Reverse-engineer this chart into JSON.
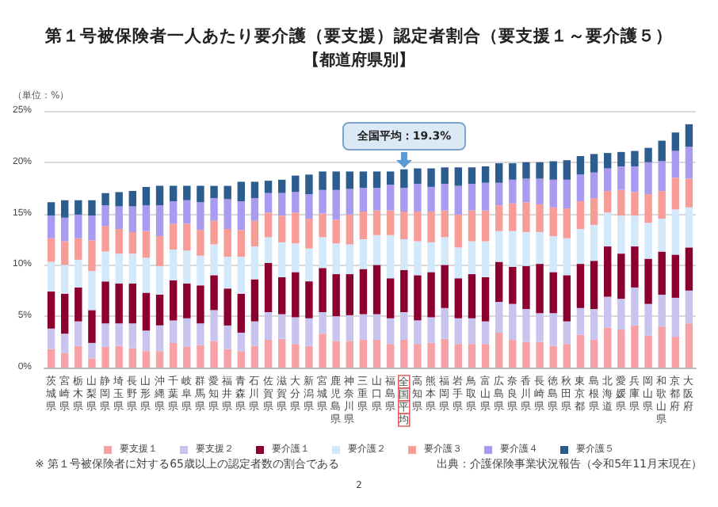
{
  "chart_data": {
    "type": "bar",
    "title": "第１号被保険者一人あたり要介護（要支援）認定者割合（要支援１～要介護５）",
    "subtitle": "【都道府県別】",
    "ylabel": "（単位：%）",
    "categories": [
      "茨城県",
      "宮崎県",
      "栃木県",
      "山梨県",
      "静岡県",
      "埼玉県",
      "長野県",
      "山形県",
      "沖縄県",
      "千葉県",
      "岐阜県",
      "群馬県",
      "愛知県",
      "福井県",
      "青森県",
      "石川県",
      "佐賀県",
      "滋賀県",
      "大分県",
      "新潟県",
      "宮城県",
      "鹿児島県",
      "神奈川県",
      "三重県",
      "山口県",
      "福島県",
      "全国平均",
      "高知県",
      "熊本県",
      "福岡県",
      "岩手県",
      "鳥取県",
      "富山県",
      "広島県",
      "奈良県",
      "香川県",
      "長崎県",
      "徳島県",
      "秋田県",
      "東京都",
      "島根県",
      "北海道",
      "愛媛県",
      "兵庫県",
      "岡山県",
      "和歌山県",
      "京都府",
      "大阪府"
    ],
    "stacked": true,
    "series": [
      {
        "name": "要支援１",
        "color": "#f7a1a6",
        "values": [
          1.8,
          1.4,
          2.1,
          0.9,
          2.0,
          2.1,
          1.9,
          1.6,
          1.6,
          2.4,
          2.0,
          2.2,
          2.6,
          1.8,
          1.6,
          2.1,
          2.7,
          2.8,
          2.3,
          2.1,
          3.3,
          2.6,
          2.6,
          2.7,
          2.7,
          2.3,
          2.7,
          2.3,
          2.4,
          2.8,
          2.3,
          2.3,
          2.3,
          3.4,
          2.7,
          2.5,
          2.5,
          2.1,
          2.3,
          3.2,
          2.7,
          3.9,
          3.7,
          4.1,
          3.1,
          4.0,
          3.0,
          4.3
        ]
      },
      {
        "name": "要支援２",
        "color": "#c8c4f0",
        "values": [
          2.0,
          1.9,
          2.4,
          1.5,
          2.3,
          2.2,
          2.4,
          2.0,
          2.5,
          2.2,
          2.8,
          2.1,
          3.0,
          2.3,
          1.8,
          2.4,
          2.7,
          2.4,
          2.6,
          2.7,
          2.1,
          2.4,
          2.5,
          2.5,
          2.5,
          2.5,
          2.7,
          2.3,
          2.5,
          3.0,
          2.5,
          2.5,
          2.2,
          3.0,
          3.5,
          3.2,
          2.8,
          3.2,
          2.2,
          2.6,
          3.0,
          3.0,
          3.0,
          3.7,
          3.1,
          3.1,
          3.8,
          3.2
        ]
      },
      {
        "name": "要介護１",
        "color": "#8c0030",
        "values": [
          3.6,
          3.9,
          3.3,
          3.2,
          4.1,
          3.9,
          3.9,
          3.7,
          3.0,
          3.9,
          3.4,
          3.7,
          3.4,
          3.6,
          3.8,
          4.1,
          4.8,
          3.6,
          4.4,
          3.6,
          4.3,
          4.1,
          4.0,
          4.4,
          4.8,
          3.9,
          4.1,
          4.4,
          4.4,
          4.2,
          3.9,
          4.3,
          4.3,
          3.9,
          3.6,
          4.2,
          4.8,
          4.0,
          4.5,
          4.3,
          4.7,
          4.9,
          4.4,
          4.0,
          4.4,
          4.2,
          4.2,
          4.2
        ]
      },
      {
        "name": "要介護２",
        "color": "#d2e8fb",
        "values": [
          2.9,
          2.8,
          2.7,
          3.8,
          2.9,
          2.9,
          2.9,
          3.4,
          2.8,
          3.0,
          3.2,
          2.9,
          3.0,
          3.1,
          3.6,
          3.2,
          2.5,
          3.4,
          2.8,
          3.2,
          3.0,
          3.0,
          2.9,
          2.9,
          2.9,
          4.2,
          3.0,
          3.3,
          2.9,
          2.7,
          3.0,
          3.2,
          3.5,
          3.0,
          3.5,
          3.3,
          3.1,
          3.5,
          3.6,
          3.4,
          3.5,
          3.3,
          3.7,
          3.0,
          3.5,
          3.2,
          4.4,
          3.9
        ]
      },
      {
        "name": "要介護３",
        "color": "#f89c97",
        "values": [
          2.3,
          2.3,
          2.1,
          3.0,
          2.5,
          2.4,
          2.1,
          2.6,
          2.9,
          2.5,
          2.6,
          2.5,
          2.3,
          2.7,
          2.6,
          2.5,
          2.4,
          2.6,
          3.0,
          2.9,
          2.3,
          2.3,
          2.9,
          2.7,
          2.4,
          2.4,
          2.7,
          2.9,
          3.0,
          2.6,
          3.2,
          3.0,
          3.0,
          2.5,
          2.7,
          2.9,
          2.7,
          2.8,
          2.9,
          2.7,
          2.6,
          2.1,
          2.5,
          2.3,
          2.8,
          2.7,
          3.1,
          2.8
        ]
      },
      {
        "name": "要介護４",
        "color": "#a99cf0",
        "values": [
          2.2,
          2.3,
          2.3,
          2.4,
          2.0,
          2.2,
          2.5,
          2.5,
          3.0,
          2.2,
          2.3,
          2.7,
          2.2,
          2.9,
          2.8,
          2.2,
          1.9,
          2.2,
          2.0,
          2.4,
          2.3,
          2.9,
          2.5,
          2.3,
          2.2,
          2.5,
          2.3,
          2.7,
          2.4,
          2.6,
          2.8,
          2.6,
          2.7,
          2.2,
          2.3,
          2.3,
          2.5,
          2.7,
          2.8,
          2.6,
          2.5,
          2.2,
          2.3,
          2.5,
          3.1,
          2.9,
          2.6,
          3.1
        ]
      },
      {
        "name": "要介護５",
        "color": "#2d5d8f",
        "values": [
          1.3,
          1.7,
          1.4,
          1.5,
          1.2,
          1.4,
          1.5,
          1.8,
          1.9,
          1.5,
          1.4,
          1.6,
          1.2,
          1.3,
          1.9,
          1.6,
          1.2,
          1.3,
          1.6,
          1.9,
          1.8,
          1.8,
          1.7,
          1.6,
          1.6,
          1.3,
          1.8,
          1.5,
          1.8,
          1.6,
          1.8,
          1.6,
          1.6,
          1.9,
          1.6,
          1.6,
          1.6,
          1.8,
          1.9,
          1.8,
          1.8,
          1.5,
          1.4,
          1.5,
          1.4,
          2.0,
          1.8,
          2.2
        ]
      }
    ],
    "ylim": [
      0,
      25
    ],
    "yticks": [
      {
        "value": 0,
        "label": "0%"
      },
      {
        "value": 5,
        "label": "5%"
      },
      {
        "value": 10,
        "label": "10%"
      },
      {
        "value": 15,
        "label": "15%"
      },
      {
        "value": 20,
        "label": "20%"
      },
      {
        "value": 25,
        "label": "25%"
      }
    ],
    "grid": "y",
    "legend": "bottom",
    "annotations": [
      {
        "text": "全国平均：19.3%",
        "x": "全国平均",
        "y": 19.3
      },
      "※ 第１号被保険者に対する65歳以上の認定者数の割合である",
      "出典：介護保険事業状況報告（令和5年11月末現在）",
      "2"
    ]
  }
}
